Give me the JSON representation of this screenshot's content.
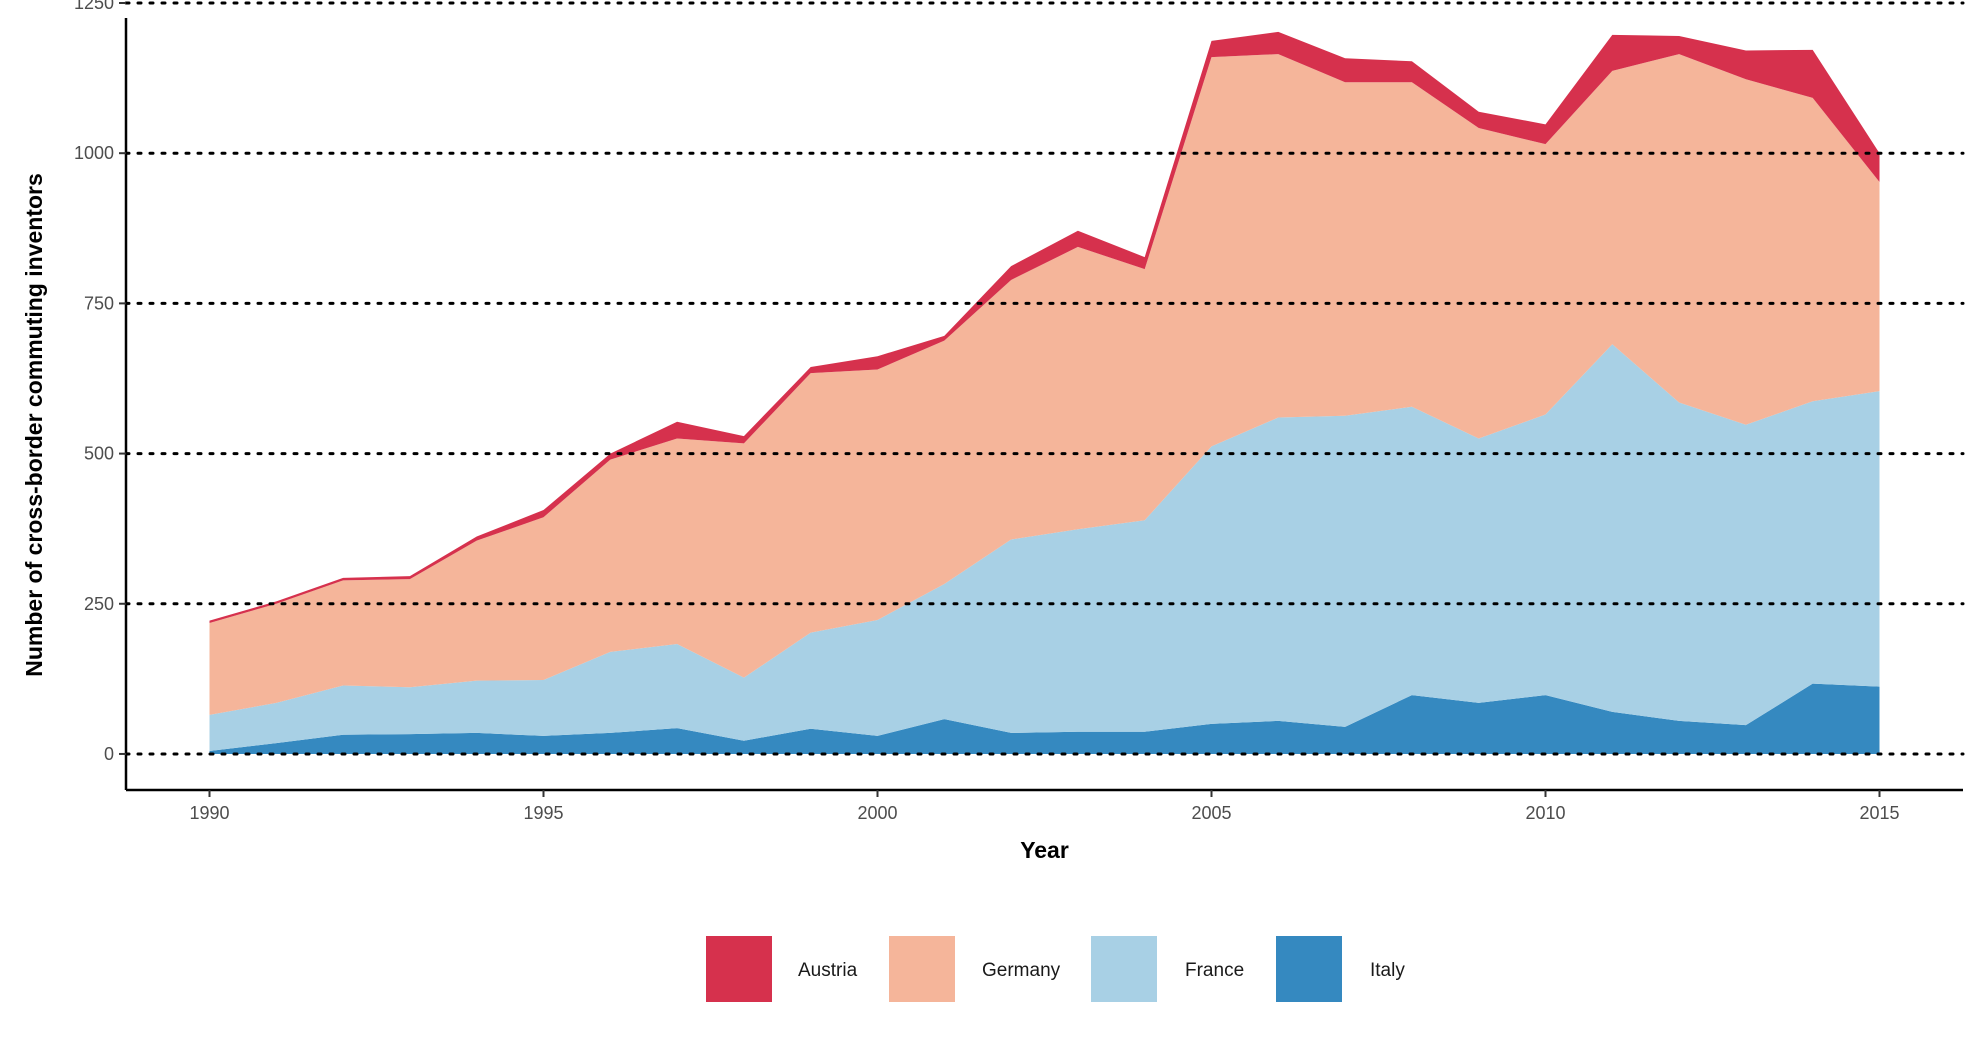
{
  "chart_data": {
    "type": "area",
    "stacked": true,
    "title": "",
    "xlabel": "Year",
    "ylabel": "Number of cross-border commuting inventors",
    "x": [
      1990,
      1991,
      1992,
      1993,
      1994,
      1995,
      1996,
      1997,
      1998,
      1999,
      2000,
      2001,
      2002,
      2003,
      2004,
      2005,
      2006,
      2007,
      2008,
      2009,
      2010,
      2011,
      2012,
      2013,
      2014,
      2015
    ],
    "xlim": [
      1988.75,
      2016.25
    ],
    "ylim": [
      -60,
      1255
    ],
    "x_ticks": [
      "1990",
      "1995",
      "2000",
      "2005",
      "2010",
      "2015"
    ],
    "y_ticks": [
      "0",
      "250",
      "500",
      "750",
      "1000",
      "1250"
    ],
    "grid": "horizontal dotted",
    "legend_position": "bottom",
    "series": [
      {
        "name": "Italy",
        "color": "#3589c0",
        "values": [
          5,
          18,
          32,
          33,
          35,
          30,
          35,
          43,
          22,
          42,
          30,
          58,
          35,
          37,
          37,
          50,
          55,
          45,
          98,
          85,
          98,
          70,
          55,
          48,
          117,
          112
        ]
      },
      {
        "name": "France",
        "color": "#a8d0e5",
        "values": [
          60,
          67,
          82,
          78,
          87,
          93,
          135,
          140,
          105,
          160,
          193,
          225,
          322,
          337,
          352,
          462,
          505,
          518,
          480,
          440,
          467,
          612,
          530,
          500,
          470,
          492
        ]
      },
      {
        "name": "Germany",
        "color": "#f5b59a",
        "values": [
          153,
          165,
          175,
          180,
          233,
          271,
          320,
          342,
          390,
          432,
          417,
          405,
          432,
          470,
          418,
          648,
          605,
          555,
          540,
          517,
          450,
          455,
          580,
          575,
          505,
          348
        ]
      },
      {
        "name": "Austria",
        "color": "#d6314d",
        "values": [
          4,
          4,
          4,
          5,
          7,
          12,
          10,
          28,
          12,
          10,
          22,
          8,
          23,
          27,
          20,
          27,
          37,
          40,
          35,
          27,
          33,
          60,
          30,
          48,
          80,
          48
        ]
      }
    ],
    "legend_order": [
      "Austria",
      "Germany",
      "France",
      "Italy"
    ]
  }
}
